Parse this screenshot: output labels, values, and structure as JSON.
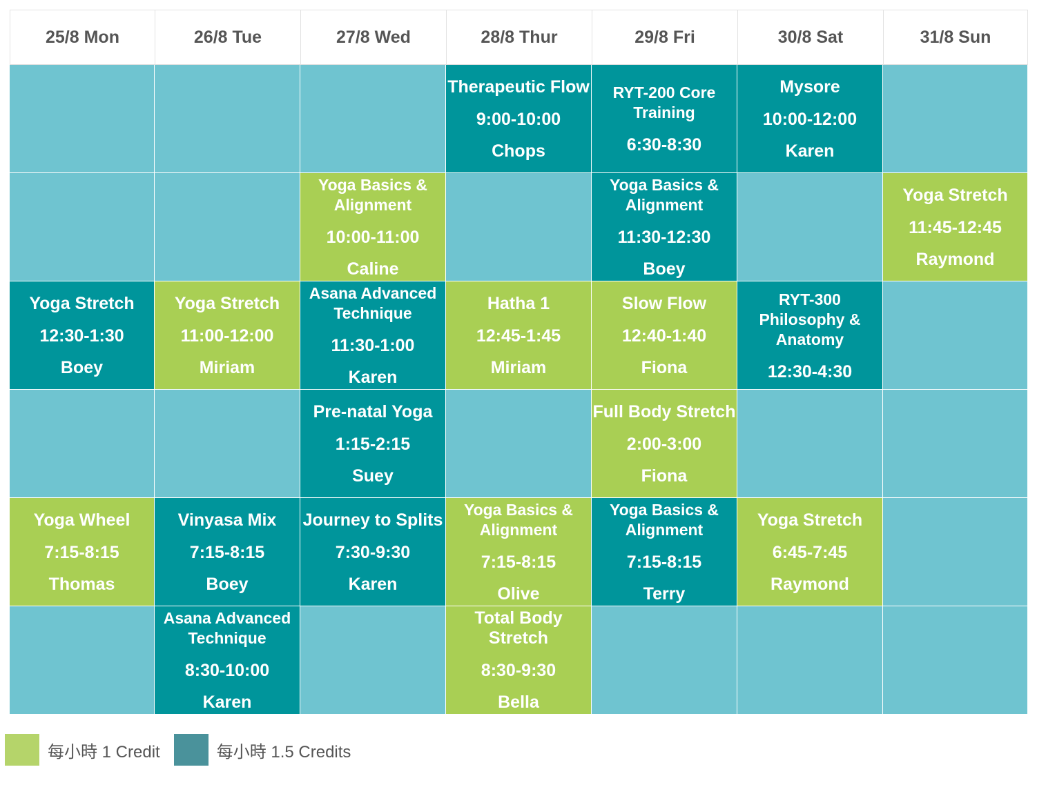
{
  "colors": {
    "empty": "#6fc4d0",
    "credit_1": "#a9cf54",
    "credit_1_5": "#00959b",
    "legend_1": "#b5d46a",
    "legend_1_5": "#4a929b"
  },
  "days": [
    "25/8 Mon",
    "26/8 Tue",
    "27/8 Wed",
    "28/8 Thur",
    "29/8 Fri",
    "30/8 Sat",
    "31/8 Sun"
  ],
  "rows": [
    [
      null,
      null,
      null,
      {
        "title": "Therapeutic Flow",
        "time": "9:00-10:00",
        "instructor": "Chops",
        "credit": "1.5"
      },
      {
        "title": "RYT-200 Core Training",
        "time": "6:30-8:30",
        "instructor": "",
        "credit": "1.5"
      },
      {
        "title": "Mysore",
        "time": "10:00-12:00",
        "instructor": "Karen",
        "credit": "1.5"
      },
      null
    ],
    [
      null,
      null,
      {
        "title": "Yoga Basics & Alignment",
        "time": "10:00-11:00",
        "instructor": "Caline",
        "credit": "1"
      },
      null,
      {
        "title": "Yoga Basics & Alignment",
        "time": "11:30-12:30",
        "instructor": "Boey",
        "credit": "1.5"
      },
      null,
      {
        "title": "Yoga Stretch",
        "time": "11:45-12:45",
        "instructor": "Raymond",
        "credit": "1"
      }
    ],
    [
      {
        "title": "Yoga Stretch",
        "time": "12:30-1:30",
        "instructor": "Boey",
        "credit": "1.5"
      },
      {
        "title": "Yoga Stretch",
        "time": "11:00-12:00",
        "instructor": "Miriam",
        "credit": "1"
      },
      {
        "title": "Asana Advanced Technique",
        "time": "11:30-1:00",
        "instructor": "Karen",
        "credit": "1.5"
      },
      {
        "title": "Hatha 1",
        "time": "12:45-1:45",
        "instructor": "Miriam",
        "credit": "1"
      },
      {
        "title": "Slow Flow",
        "time": "12:40-1:40",
        "instructor": "Fiona",
        "credit": "1"
      },
      {
        "title": "RYT-300 Philosophy & Anatomy",
        "time": "12:30-4:30",
        "instructor": "",
        "credit": "1.5"
      },
      null
    ],
    [
      null,
      null,
      {
        "title": "Pre-natal Yoga",
        "time": "1:15-2:15",
        "instructor": "Suey",
        "credit": "1.5"
      },
      null,
      {
        "title": "Full Body Stretch",
        "time": "2:00-3:00",
        "instructor": "Fiona",
        "credit": "1"
      },
      null,
      null
    ],
    [
      {
        "title": "Yoga Wheel",
        "time": "7:15-8:15",
        "instructor": "Thomas",
        "credit": "1"
      },
      {
        "title": "Vinyasa Mix",
        "time": "7:15-8:15",
        "instructor": "Boey",
        "credit": "1.5"
      },
      {
        "title": "Journey to Splits",
        "time": "7:30-9:30",
        "instructor": "Karen",
        "credit": "1.5"
      },
      {
        "title": "Yoga Basics & Alignment",
        "time": "7:15-8:15",
        "instructor": "Olive",
        "credit": "1"
      },
      {
        "title": "Yoga Basics & Alignment",
        "time": "7:15-8:15",
        "instructor": "Terry",
        "credit": "1.5"
      },
      {
        "title": "Yoga Stretch",
        "time": "6:45-7:45",
        "instructor": "Raymond",
        "credit": "1"
      },
      null
    ],
    [
      null,
      {
        "title": "Asana Advanced Technique",
        "time": "8:30-10:00",
        "instructor": "Karen",
        "credit": "1.5"
      },
      null,
      {
        "title": "Total Body Stretch",
        "time": "8:30-9:30",
        "instructor": "Bella",
        "credit": "1"
      },
      null,
      null,
      null
    ]
  ],
  "legend": [
    {
      "label": "每小時 1 Credit",
      "color_key": "legend_1"
    },
    {
      "label": "每小時 1.5 Credits",
      "color_key": "legend_1_5"
    }
  ]
}
